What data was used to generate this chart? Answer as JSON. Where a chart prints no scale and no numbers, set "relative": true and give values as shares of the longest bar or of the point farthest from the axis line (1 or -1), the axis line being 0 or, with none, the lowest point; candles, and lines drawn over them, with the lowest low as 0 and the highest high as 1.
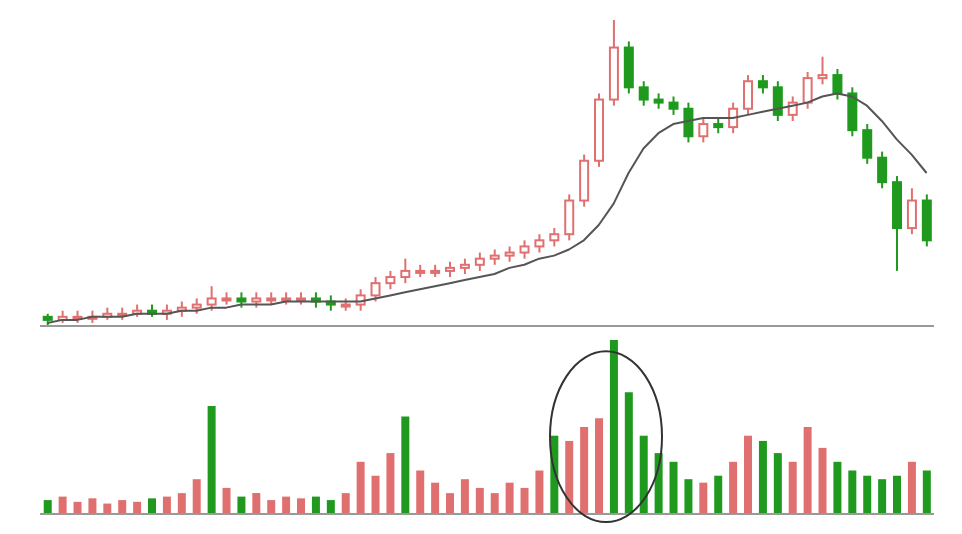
{
  "chart_data": [
    {
      "type": "candlestick",
      "relative": true,
      "categories": [
        null,
        null,
        null,
        null,
        null,
        null,
        null,
        null,
        null,
        null,
        null,
        null,
        null,
        null,
        null,
        null,
        null,
        null,
        null,
        null,
        null,
        null,
        null,
        null,
        null,
        null,
        null,
        null,
        null,
        null,
        null,
        null,
        null,
        null,
        null,
        null,
        null,
        null,
        null,
        null,
        null,
        null,
        null,
        null,
        null,
        null,
        null,
        null,
        null,
        null,
        null,
        null,
        null,
        null,
        null,
        null,
        null,
        null,
        null,
        null
      ],
      "ohlc": [
        [
          0.03,
          0.04,
          0,
          0.02
        ],
        [
          0.02,
          0.05,
          0.01,
          0.03
        ],
        [
          0.03,
          0.05,
          0.01,
          0.03
        ],
        [
          0.03,
          0.05,
          0.01,
          0.03
        ],
        [
          0.03,
          0.06,
          0.02,
          0.04
        ],
        [
          0.04,
          0.06,
          0.02,
          0.04
        ],
        [
          0.04,
          0.07,
          0.03,
          0.05
        ],
        [
          0.05,
          0.07,
          0.03,
          0.04
        ],
        [
          0.04,
          0.07,
          0.02,
          0.05
        ],
        [
          0.05,
          0.08,
          0.03,
          0.06
        ],
        [
          0.06,
          0.09,
          0.04,
          0.07
        ],
        [
          0.07,
          0.13,
          0.05,
          0.09
        ],
        [
          0.09,
          0.11,
          0.07,
          0.09
        ],
        [
          0.09,
          0.11,
          0.06,
          0.08
        ],
        [
          0.08,
          0.11,
          0.06,
          0.09
        ],
        [
          0.09,
          0.11,
          0.07,
          0.09
        ],
        [
          0.09,
          0.11,
          0.07,
          0.09
        ],
        [
          0.09,
          0.11,
          0.07,
          0.09
        ],
        [
          0.09,
          0.11,
          0.06,
          0.08
        ],
        [
          0.08,
          0.1,
          0.05,
          0.07
        ],
        [
          0.07,
          0.09,
          0.05,
          0.07
        ],
        [
          0.07,
          0.12,
          0.05,
          0.1
        ],
        [
          0.1,
          0.16,
          0.08,
          0.14
        ],
        [
          0.14,
          0.18,
          0.12,
          0.16
        ],
        [
          0.16,
          0.22,
          0.14,
          0.18
        ],
        [
          0.18,
          0.2,
          0.16,
          0.18
        ],
        [
          0.18,
          0.2,
          0.16,
          0.18
        ],
        [
          0.18,
          0.21,
          0.16,
          0.19
        ],
        [
          0.19,
          0.22,
          0.17,
          0.2
        ],
        [
          0.2,
          0.24,
          0.18,
          0.22
        ],
        [
          0.22,
          0.25,
          0.2,
          0.23
        ],
        [
          0.23,
          0.26,
          0.21,
          0.24
        ],
        [
          0.24,
          0.28,
          0.22,
          0.26
        ],
        [
          0.26,
          0.3,
          0.24,
          0.28
        ],
        [
          0.28,
          0.32,
          0.26,
          0.3
        ],
        [
          0.3,
          0.43,
          0.28,
          0.41
        ],
        [
          0.41,
          0.56,
          0.39,
          0.54
        ],
        [
          0.54,
          0.76,
          0.52,
          0.74
        ],
        [
          0.74,
          1,
          0.72,
          0.91
        ],
        [
          0.91,
          0.93,
          0.76,
          0.78
        ],
        [
          0.78,
          0.8,
          0.72,
          0.74
        ],
        [
          0.74,
          0.76,
          0.71,
          0.73
        ],
        [
          0.73,
          0.75,
          0.69,
          0.71
        ],
        [
          0.71,
          0.73,
          0.6,
          0.62
        ],
        [
          0.62,
          0.68,
          0.6,
          0.66
        ],
        [
          0.66,
          0.68,
          0.63,
          0.65
        ],
        [
          0.65,
          0.73,
          0.63,
          0.71
        ],
        [
          0.71,
          0.82,
          0.69,
          0.8
        ],
        [
          0.8,
          0.82,
          0.76,
          0.78
        ],
        [
          0.78,
          0.8,
          0.67,
          0.69
        ],
        [
          0.69,
          0.75,
          0.67,
          0.73
        ],
        [
          0.73,
          0.83,
          0.71,
          0.81
        ],
        [
          0.81,
          0.88,
          0.79,
          0.82
        ],
        [
          0.82,
          0.84,
          0.74,
          0.76
        ],
        [
          0.76,
          0.78,
          0.62,
          0.64
        ],
        [
          0.64,
          0.66,
          0.53,
          0.55
        ],
        [
          0.55,
          0.57,
          0.45,
          0.47
        ],
        [
          0.47,
          0.49,
          0.18,
          0.32
        ],
        [
          0.32,
          0.45,
          0.3,
          0.41
        ],
        [
          0.41,
          0.43,
          0.26,
          0.28
        ]
      ],
      "colors": [
        "#1f9a1f",
        "#e07070",
        "#e07070",
        "#e07070",
        "#e07070",
        "#e07070",
        "#e07070",
        "#1f9a1f",
        "#e07070",
        "#e07070",
        "#e07070",
        "#e07070",
        "#e07070",
        "#1f9a1f",
        "#e07070",
        "#e07070",
        "#e07070",
        "#e07070",
        "#1f9a1f",
        "#1f9a1f",
        "#e07070",
        "#e07070",
        "#e07070",
        "#e07070",
        "#e07070",
        "#e07070",
        "#e07070",
        "#e07070",
        "#e07070",
        "#e07070",
        "#e07070",
        "#e07070",
        "#e07070",
        "#e07070",
        "#e07070",
        "#e07070",
        "#e07070",
        "#e07070",
        "#e07070",
        "#1f9a1f",
        "#1f9a1f",
        "#1f9a1f",
        "#1f9a1f",
        "#1f9a1f",
        "#e07070",
        "#1f9a1f",
        "#e07070",
        "#e07070",
        "#1f9a1f",
        "#1f9a1f",
        "#e07070",
        "#e07070",
        "#e07070",
        "#1f9a1f",
        "#1f9a1f",
        "#1f9a1f",
        "#1f9a1f",
        "#1f9a1f",
        "#e07070",
        "#1f9a1f"
      ],
      "series": [
        {
          "type": "line",
          "color": "#555555",
          "values": [
            0.01,
            0.02,
            0.02,
            0.03,
            0.03,
            0.03,
            0.04,
            0.04,
            0.04,
            0.05,
            0.05,
            0.06,
            0.06,
            0.07,
            0.07,
            0.07,
            0.08,
            0.08,
            0.08,
            0.08,
            0.08,
            0.08,
            0.09,
            0.1,
            0.11,
            0.12,
            0.13,
            0.14,
            0.15,
            0.16,
            0.17,
            0.19,
            0.2,
            0.22,
            0.23,
            0.25,
            0.28,
            0.33,
            0.4,
            0.5,
            0.58,
            0.63,
            0.66,
            0.67,
            0.68,
            0.68,
            0.68,
            0.69,
            0.7,
            0.71,
            0.72,
            0.73,
            0.75,
            0.76,
            0.75,
            0.72,
            0.67,
            0.61,
            0.56,
            0.5
          ]
        }
      ]
    },
    {
      "type": "bar",
      "relative": true,
      "categories": [
        null,
        null,
        null,
        null,
        null,
        null,
        null,
        null,
        null,
        null,
        null,
        null,
        null,
        null,
        null,
        null,
        null,
        null,
        null,
        null,
        null,
        null,
        null,
        null,
        null,
        null,
        null,
        null,
        null,
        null,
        null,
        null,
        null,
        null,
        null,
        null,
        null,
        null,
        null,
        null,
        null,
        null,
        null,
        null,
        null,
        null,
        null,
        null,
        null,
        null,
        null,
        null,
        null,
        null,
        null,
        null,
        null,
        null,
        null,
        null
      ],
      "values": [
        0.08,
        0.1,
        0.07,
        0.09,
        0.06,
        0.08,
        0.07,
        0.09,
        0.1,
        0.12,
        0.2,
        0.62,
        0.15,
        0.1,
        0.12,
        0.08,
        0.1,
        0.09,
        0.1,
        0.08,
        0.12,
        0.3,
        0.22,
        0.35,
        0.56,
        0.25,
        0.18,
        0.12,
        0.2,
        0.15,
        0.12,
        0.18,
        0.15,
        0.25,
        0.45,
        0.42,
        0.5,
        0.55,
        1,
        0.7,
        0.45,
        0.35,
        0.3,
        0.2,
        0.18,
        0.22,
        0.3,
        0.45,
        0.42,
        0.35,
        0.3,
        0.5,
        0.38,
        0.3,
        0.25,
        0.22,
        0.2,
        0.22,
        0.3,
        0.25
      ],
      "colors": [
        "#1f9a1f",
        "#e07070",
        "#e07070",
        "#e07070",
        "#e07070",
        "#e07070",
        "#e07070",
        "#1f9a1f",
        "#e07070",
        "#e07070",
        "#e07070",
        "#1f9a1f",
        "#e07070",
        "#1f9a1f",
        "#e07070",
        "#e07070",
        "#e07070",
        "#e07070",
        "#1f9a1f",
        "#1f9a1f",
        "#e07070",
        "#e07070",
        "#e07070",
        "#e07070",
        "#1f9a1f",
        "#e07070",
        "#e07070",
        "#e07070",
        "#e07070",
        "#e07070",
        "#e07070",
        "#e07070",
        "#e07070",
        "#e07070",
        "#1f9a1f",
        "#e07070",
        "#e07070",
        "#e07070",
        "#1f9a1f",
        "#1f9a1f",
        "#1f9a1f",
        "#1f9a1f",
        "#1f9a1f",
        "#1f9a1f",
        "#e07070",
        "#1f9a1f",
        "#e07070",
        "#e07070",
        "#1f9a1f",
        "#1f9a1f",
        "#e07070",
        "#e07070",
        "#e07070",
        "#1f9a1f",
        "#1f9a1f",
        "#1f9a1f",
        "#1f9a1f",
        "#1f9a1f",
        "#e07070",
        "#1f9a1f"
      ]
    }
  ]
}
